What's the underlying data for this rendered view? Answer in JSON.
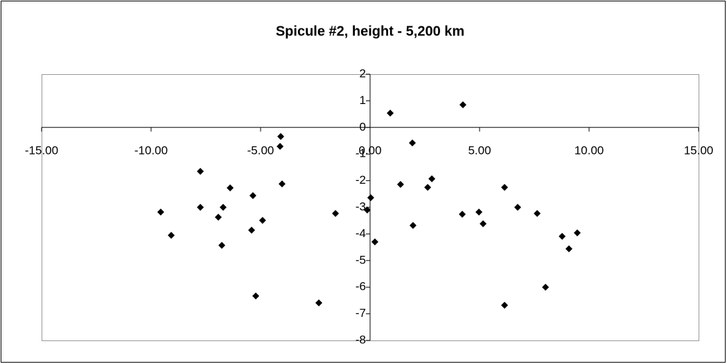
{
  "chart_data": {
    "type": "scatter",
    "title": "Spicule #2, height - 5,200 km",
    "color": "#000000",
    "x": [
      0.92,
      4.24,
      -4.08,
      -4.11,
      1.93,
      -7.75,
      -4.02,
      -6.39,
      1.39,
      2.82,
      2.63,
      6.14,
      0.03,
      -5.35,
      -9.56,
      -7.75,
      -6.71,
      -6.93,
      -1.58,
      -0.13,
      -4.91,
      -5.41,
      -9.08,
      -6.77,
      0.22,
      1.96,
      4.21,
      4.97,
      5.16,
      6.74,
      7.63,
      9.46,
      8.77,
      9.08,
      8.01,
      6.14,
      -5.22,
      -2.34
    ],
    "values": [
      0.54,
      0.85,
      -0.34,
      -0.71,
      -0.58,
      -1.65,
      -2.12,
      -2.27,
      -2.14,
      -1.93,
      -2.25,
      -2.25,
      -2.64,
      -2.56,
      -3.18,
      -3.0,
      -3.0,
      -3.37,
      -3.23,
      -3.1,
      -3.49,
      -3.86,
      -4.05,
      -4.43,
      -4.3,
      -3.68,
      -3.26,
      -3.18,
      -3.62,
      -3.0,
      -3.23,
      -3.96,
      -4.09,
      -4.56,
      -6.0,
      -6.68,
      -6.33,
      -6.59
    ],
    "xlim": [
      -15,
      15
    ],
    "xticks": [
      {
        "value": -15,
        "label": "-15.00"
      },
      {
        "value": -10,
        "label": "-10.00"
      },
      {
        "value": -5,
        "label": "-5.00"
      },
      {
        "value": 0,
        "label": "0.00"
      },
      {
        "value": 5,
        "label": "5.00"
      },
      {
        "value": 10,
        "label": "10.00"
      },
      {
        "value": 15,
        "label": "15.00"
      }
    ],
    "ylim": [
      -8,
      2
    ],
    "yticks": [
      -8,
      -7,
      -6,
      -5,
      -4,
      -3,
      -2,
      -1,
      0,
      1,
      2
    ]
  }
}
